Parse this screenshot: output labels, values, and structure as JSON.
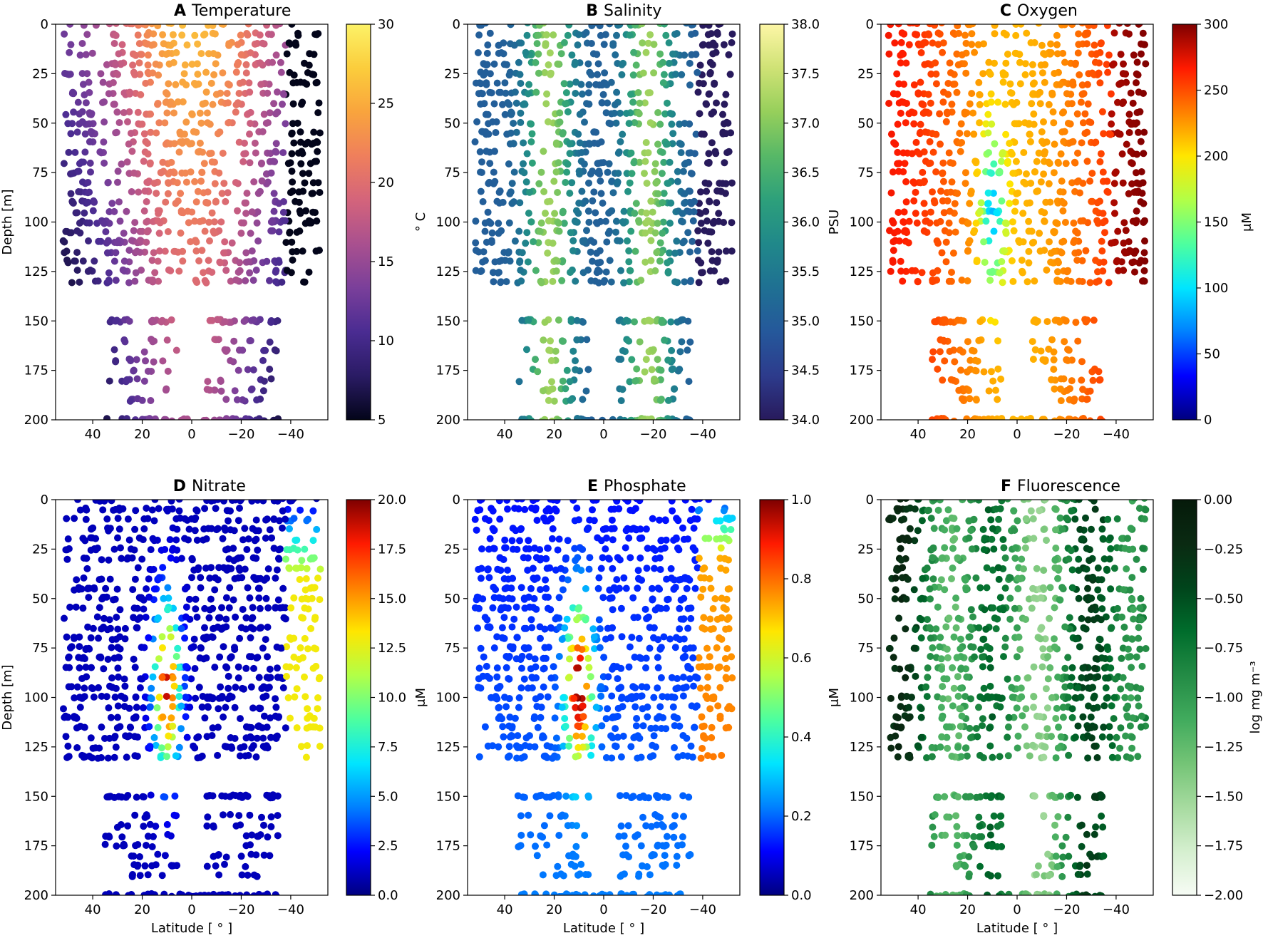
{
  "figure": {
    "x_axis_label": "Latitude [ ° ]",
    "y_axis_label": "Depth [m]"
  },
  "chart_data": [
    {
      "type": "scatter",
      "letter": "A",
      "title": "Temperature",
      "xlabel": "",
      "ylabel": "Depth [m]",
      "xlim": [
        55,
        -55
      ],
      "ylim": [
        200,
        0
      ],
      "xticks": [
        40,
        20,
        0,
        -20,
        -40
      ],
      "xtick_labels": [
        "40",
        "20",
        "0",
        "−20",
        "−40"
      ],
      "yticks": [
        0,
        25,
        50,
        75,
        100,
        125,
        150,
        175,
        200
      ],
      "ytick_labels": [
        "0",
        "25",
        "50",
        "75",
        "100",
        "125",
        "150",
        "175",
        "200"
      ],
      "colorbar": {
        "label": "° C",
        "range": [
          5,
          30
        ],
        "ticks": [
          5,
          10,
          15,
          20,
          25,
          30
        ],
        "tick_labels": [
          "5",
          "10",
          "15",
          "20",
          "25",
          "30"
        ],
        "colormap": [
          "#03051a",
          "#2a1b64",
          "#4a2c92",
          "#7a3f9a",
          "#a9508f",
          "#d4647b",
          "#ef7f5c",
          "#f9a43d",
          "#fbcd3c",
          "#fcf267"
        ]
      }
    },
    {
      "type": "scatter",
      "letter": "B",
      "title": "Salinity",
      "xlabel": "",
      "ylabel": "",
      "xlim": [
        55,
        -55
      ],
      "ylim": [
        200,
        0
      ],
      "xticks": [
        40,
        20,
        0,
        -20,
        -40
      ],
      "xtick_labels": [
        "40",
        "20",
        "0",
        "−20",
        "−40"
      ],
      "yticks": [
        0,
        25,
        50,
        75,
        100,
        125,
        150,
        175,
        200
      ],
      "ytick_labels": [
        "0",
        "25",
        "50",
        "75",
        "100",
        "125",
        "150",
        "175",
        "200"
      ],
      "colorbar": {
        "label": "PSU",
        "range": [
          34.0,
          38.0
        ],
        "ticks": [
          34.0,
          34.5,
          35.0,
          35.5,
          36.0,
          36.5,
          37.0,
          37.5,
          38.0
        ],
        "tick_labels": [
          "34.0",
          "34.5",
          "35.0",
          "35.5",
          "36.0",
          "36.5",
          "37.0",
          "37.5",
          "38.0"
        ],
        "colormap": [
          "#281a5c",
          "#2d3b8c",
          "#25589b",
          "#1f7093",
          "#20888a",
          "#2da07b",
          "#57b867",
          "#96cf5b",
          "#cfe275",
          "#fdf6a6"
        ]
      }
    },
    {
      "type": "scatter",
      "letter": "C",
      "title": "Oxygen",
      "xlabel": "",
      "ylabel": "",
      "xlim": [
        55,
        -55
      ],
      "ylim": [
        200,
        0
      ],
      "xticks": [
        40,
        20,
        0,
        -20,
        -40
      ],
      "xtick_labels": [
        "40",
        "20",
        "0",
        "−20",
        "−40"
      ],
      "yticks": [
        0,
        25,
        50,
        75,
        100,
        125,
        150,
        175,
        200
      ],
      "ytick_labels": [
        "0",
        "25",
        "50",
        "75",
        "100",
        "125",
        "150",
        "175",
        "200"
      ],
      "colorbar": {
        "label": "μM",
        "range": [
          0,
          300
        ],
        "ticks": [
          0,
          50,
          100,
          150,
          200,
          250,
          300
        ],
        "tick_labels": [
          "0",
          "50",
          "100",
          "150",
          "200",
          "250",
          "300"
        ],
        "colormap": [
          "#00007f",
          "#0000ff",
          "#0080ff",
          "#00e5ff",
          "#4dff9f",
          "#b2ff47",
          "#ffe600",
          "#ff8000",
          "#ff1a00",
          "#7f0000"
        ]
      }
    },
    {
      "type": "scatter",
      "letter": "D",
      "title": "Nitrate",
      "xlabel": "Latitude [ ° ]",
      "ylabel": "Depth [m]",
      "xlim": [
        55,
        -55
      ],
      "ylim": [
        200,
        0
      ],
      "xticks": [
        40,
        20,
        0,
        -20,
        -40
      ],
      "xtick_labels": [
        "40",
        "20",
        "0",
        "−20",
        "−40"
      ],
      "yticks": [
        0,
        25,
        50,
        75,
        100,
        125,
        150,
        175,
        200
      ],
      "ytick_labels": [
        "0",
        "25",
        "50",
        "75",
        "100",
        "125",
        "150",
        "175",
        "200"
      ],
      "colorbar": {
        "label": "μM",
        "range": [
          0.0,
          20.0
        ],
        "ticks": [
          0.0,
          2.5,
          5.0,
          7.5,
          10.0,
          12.5,
          15.0,
          17.5,
          20.0
        ],
        "tick_labels": [
          "0.0",
          "2.5",
          "5.0",
          "7.5",
          "10.0",
          "12.5",
          "15.0",
          "17.5",
          "20.0"
        ],
        "colormap": [
          "#00007f",
          "#0000ff",
          "#0080ff",
          "#00e5ff",
          "#4dff9f",
          "#b2ff47",
          "#ffe600",
          "#ff8000",
          "#ff1a00",
          "#7f0000"
        ]
      }
    },
    {
      "type": "scatter",
      "letter": "E",
      "title": "Phosphate",
      "xlabel": "Latitude [ ° ]",
      "ylabel": "",
      "xlim": [
        55,
        -55
      ],
      "ylim": [
        200,
        0
      ],
      "xticks": [
        40,
        20,
        0,
        -20,
        -40
      ],
      "xtick_labels": [
        "40",
        "20",
        "0",
        "−20",
        "−40"
      ],
      "yticks": [
        0,
        25,
        50,
        75,
        100,
        125,
        150,
        175,
        200
      ],
      "ytick_labels": [
        "0",
        "25",
        "50",
        "75",
        "100",
        "125",
        "150",
        "175",
        "200"
      ],
      "colorbar": {
        "label": "μM",
        "range": [
          0.0,
          1.0
        ],
        "ticks": [
          0.0,
          0.2,
          0.4,
          0.6,
          0.8,
          1.0
        ],
        "tick_labels": [
          "0.0",
          "0.2",
          "0.4",
          "0.6",
          "0.8",
          "1.0"
        ],
        "colormap": [
          "#00007f",
          "#0000ff",
          "#0080ff",
          "#00e5ff",
          "#4dff9f",
          "#b2ff47",
          "#ffe600",
          "#ff8000",
          "#ff1a00",
          "#7f0000"
        ]
      }
    },
    {
      "type": "scatter",
      "letter": "F",
      "title": "Fluorescence",
      "xlabel": "Latitude [ ° ]",
      "ylabel": "",
      "xlim": [
        55,
        -55
      ],
      "ylim": [
        200,
        0
      ],
      "xticks": [
        40,
        20,
        0,
        -20,
        -40
      ],
      "xtick_labels": [
        "40",
        "20",
        "0",
        "−20",
        "−40"
      ],
      "yticks": [
        0,
        25,
        50,
        75,
        100,
        125,
        150,
        175,
        200
      ],
      "ytick_labels": [
        "0",
        "25",
        "50",
        "75",
        "100",
        "125",
        "150",
        "175",
        "200"
      ],
      "colorbar": {
        "label": "log mg m⁻³",
        "range": [
          -2.0,
          0.0
        ],
        "ticks": [
          0.0,
          -0.25,
          -0.5,
          -0.75,
          -1.0,
          -1.25,
          -1.5,
          -1.75,
          -2.0
        ],
        "tick_labels": [
          "0.00",
          "−0.25",
          "−0.50",
          "−0.75",
          "−1.00",
          "−1.25",
          "−1.50",
          "−1.75",
          "−2.00"
        ],
        "colormap": [
          "#f7fcf5",
          "#d5efcf",
          "#a7dba0",
          "#74c476",
          "#41ab5d",
          "#238b45",
          "#006d2c",
          "#00441b",
          "#0a2a12",
          "#051a0a"
        ]
      }
    }
  ]
}
